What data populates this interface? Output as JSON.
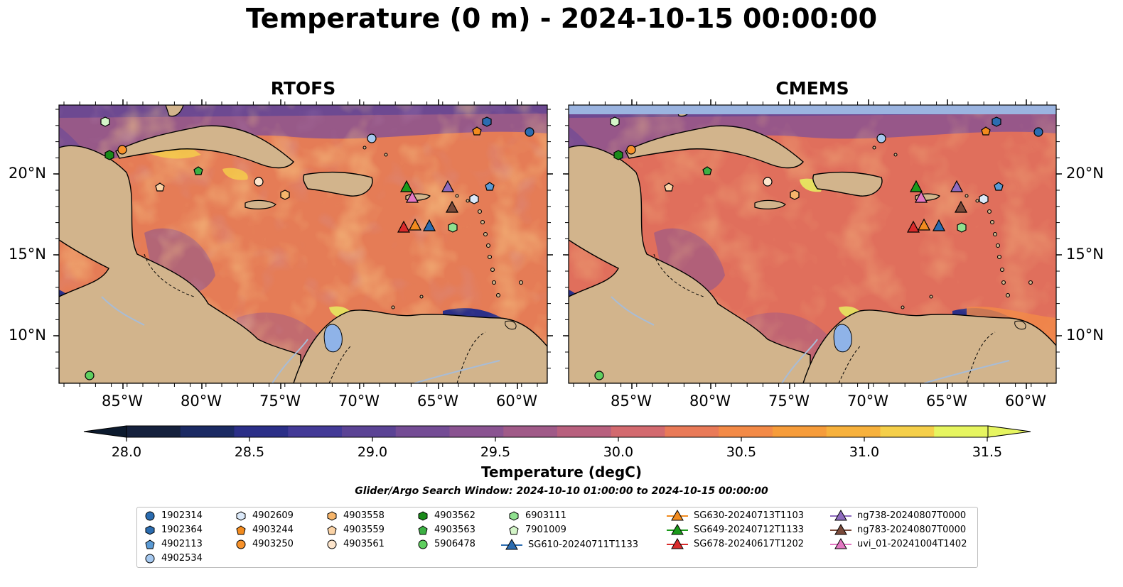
{
  "title": "Temperature (0 m) - 2024-10-15 00:00:00",
  "panels": [
    {
      "name": "RTOFS"
    },
    {
      "name": "CMEMS"
    }
  ],
  "lon_ticks": [
    "85°W",
    "80°W",
    "75°W",
    "70°W",
    "65°W",
    "60°W"
  ],
  "lat_ticks": [
    "20°N",
    "15°N",
    "10°N"
  ],
  "colorbar": {
    "ticks": [
      "28.0",
      "28.5",
      "29.0",
      "29.5",
      "30.0",
      "30.5",
      "31.0",
      "31.5"
    ],
    "label": "Temperature (degC)",
    "range": [
      28.0,
      31.5
    ],
    "colors": [
      "#15213d",
      "#1b2a63",
      "#2b2f88",
      "#433a97",
      "#5b4395",
      "#744c95",
      "#8a5391",
      "#a05a88",
      "#b8607e",
      "#d36a6f",
      "#e97a58",
      "#f38a47",
      "#f69c3a",
      "#f7b13c",
      "#f5cf4a",
      "#e6f560"
    ]
  },
  "search_window": "Glider/Argo Search Window: 2024-10-10 01:00:00 to 2024-10-15 00:00:00",
  "legend": {
    "col1": [
      "1902314",
      "1902364",
      "4902113",
      "4902534"
    ],
    "col2": [
      "4902609",
      "4903244",
      "4903250"
    ],
    "col3": [
      "4903558",
      "4903559",
      "4903561"
    ],
    "col4": [
      "4903562",
      "4903563",
      "5906478"
    ],
    "col5": [
      "6903111",
      "7901009",
      "SG610-20240711T1133"
    ],
    "col6": [
      "SG630-20240713T1103",
      "SG649-20240712T1133",
      "SG678-20240617T1202"
    ],
    "col7": [
      "ng738-20240807T0000",
      "ng783-20240807T0000",
      "uvi_01-20241004T1402"
    ]
  },
  "colors": {
    "ocean_base": "#e57c56",
    "land": "#d2b48c",
    "lake": "#8fb3e8",
    "river": "#a8bcd6",
    "cmems_strip": "#9bb4e0"
  }
}
